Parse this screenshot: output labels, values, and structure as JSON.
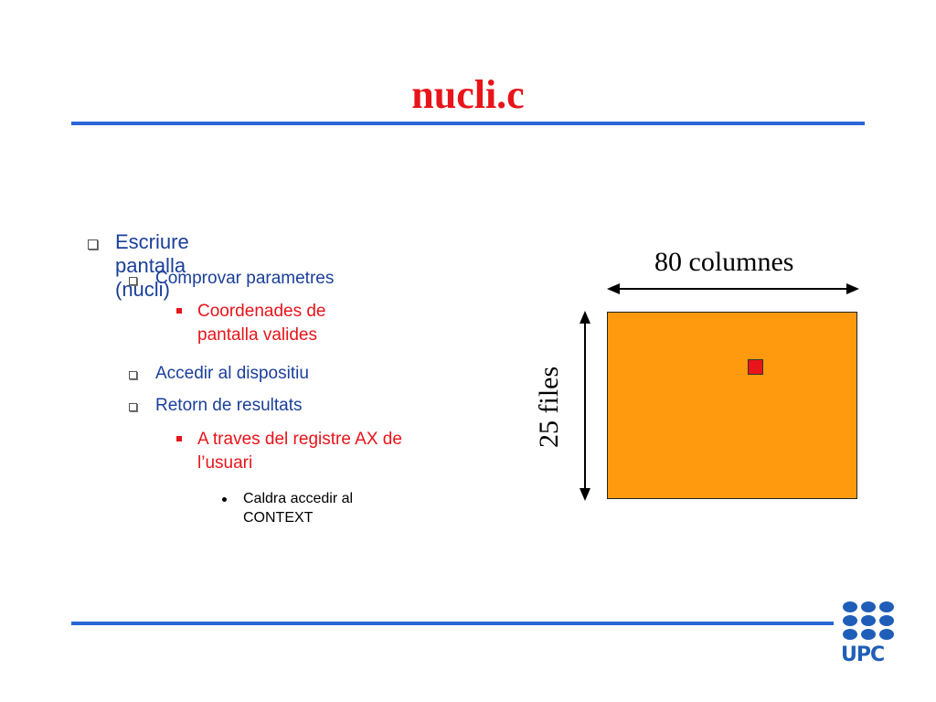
{
  "slide": {
    "title": "nucli.c",
    "bullets": {
      "l1": "Escriure pantalla (nucli)",
      "l2a": "Comprovar parametres",
      "l3a": "Coordenades de pantalla valides",
      "l2b": "Accedir al dispositiu",
      "l2c": "Retorn de resultats",
      "l3b": "A traves del registre AX de l’usuari",
      "l4a": "Caldra accedir al CONTEXT"
    },
    "diagram": {
      "columns_label": "80 columnes",
      "rows_label": "25 files",
      "screen_color": "#ff9a0e",
      "cell_color": "#e8141a"
    },
    "logo": {
      "text": "UPC",
      "color": "#1f5eb8"
    }
  }
}
